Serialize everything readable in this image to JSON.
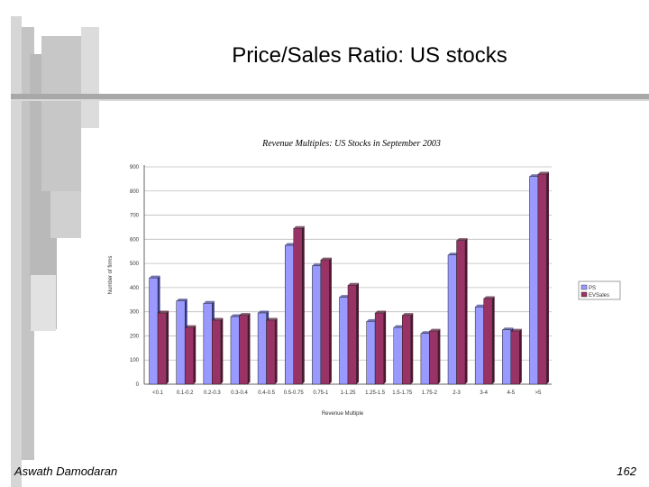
{
  "slide": {
    "title": "Price/Sales Ratio:  US stocks",
    "author": "Aswath Damodaran",
    "page_number": "162"
  },
  "colors": {
    "series1": "#9999ff",
    "series2": "#993366",
    "deco_gray": "#c8c8c8"
  },
  "chart_data": {
    "type": "bar",
    "title": "Revenue Multiples: US Stocks in September 2003",
    "xlabel": "Revenue Multiple",
    "ylabel": "Number of firms",
    "ylim": [
      0,
      900
    ],
    "yticks": [
      "0",
      "100",
      "200",
      "300",
      "400",
      "500",
      "600",
      "700",
      "800",
      "900"
    ],
    "grid": true,
    "legend_position": "right",
    "categories": [
      "<0.1",
      "0.1-0.2",
      "0.2-0.3",
      "0.3-0.4",
      "0.4-0.5",
      "0.5-0.75",
      "0.75-1",
      "1-1.25",
      "1.25-1.5",
      "1.5-1.75",
      "1.75-2",
      "2-3",
      "3-4",
      "4-5",
      ">5"
    ],
    "series": [
      {
        "name": "PS",
        "values": [
          440,
          345,
          335,
          280,
          295,
          575,
          490,
          360,
          260,
          235,
          210,
          535,
          320,
          225,
          860
        ]
      },
      {
        "name": "EVSales",
        "values": [
          295,
          235,
          265,
          285,
          265,
          645,
          515,
          410,
          295,
          285,
          220,
          595,
          355,
          220,
          870
        ]
      }
    ]
  }
}
